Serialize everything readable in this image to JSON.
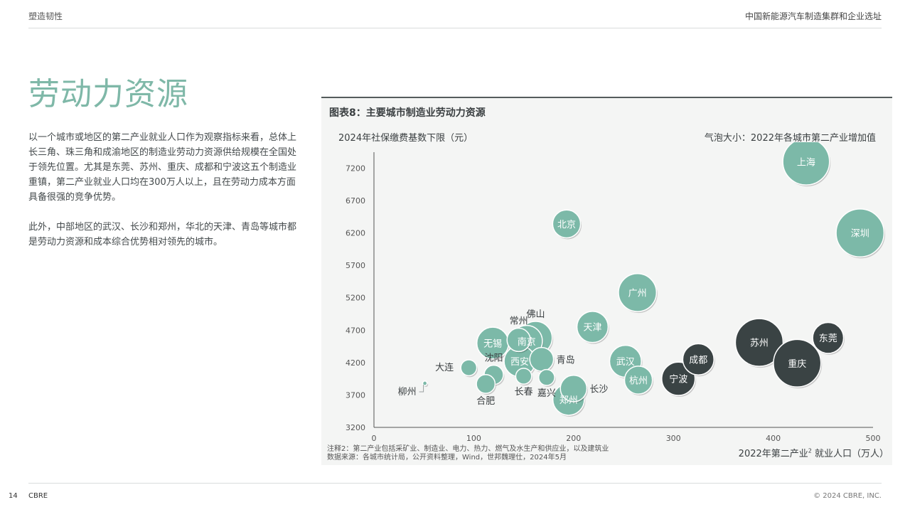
{
  "header": {
    "left": "塑造韧性",
    "right": "中国新能源汽车制造集群和企业选址"
  },
  "title": "劳动力资源",
  "paragraphs": [
    "以一个城市或地区的第二产业就业人口作为观察指标来看，总体上长三角、珠三角和成渝地区的制造业劳动力资源供给规模在全国处于领先位置。尤其是东莞、苏州、重庆、成都和宁波这五个制造业重镇，第二产业就业人口均在300万人以上，且在劳动力成本方面具备很强的竞争优势。",
    "此外，中部地区的武汉、长沙和郑州，华北的天津、青岛等城市都是劳动力资源和成本综合优势相对领先的城市。"
  ],
  "figure": {
    "title": "图表8：主要城市制造业劳动力资源",
    "note1": "注释2：第二产业包括采矿业、制造业、电力、热力、燃气及水生产和供应业，以及建筑业",
    "note2": "数据来源：各城市统计局，公开资料整理，Wind，世邦魏理仕，2024年5月",
    "bubble_note": "气泡大小：2022年各城市第二产业增加值",
    "x_title_a": "2022年第二产业",
    "x_title_sup": "2",
    "x_title_b": " 就业人口（万人）"
  },
  "chart_data": {
    "type": "scatter",
    "title": "图表8：主要城市制造业劳动力资源",
    "xlabel": "2022年第二产业就业人口（万人）",
    "ylabel": "2024年社保缴费基数下限（元）",
    "xlim": [
      0,
      500
    ],
    "ylim": [
      3200,
      7600
    ],
    "x_ticks": [
      0,
      100,
      200,
      300,
      400,
      500
    ],
    "y_ticks": [
      3200,
      3700,
      4200,
      4700,
      5200,
      5700,
      6200,
      6700,
      7200
    ],
    "grid": false,
    "size_legend": "气泡大小：2022年各城市第二产业增加值",
    "colors": {
      "teal": "#7cb9a8",
      "dark": "#3a4344",
      "axis": "#555555"
    },
    "points": [
      {
        "city": "上海",
        "x": 433,
        "y": 7300,
        "size": 11200,
        "group": "teal",
        "label_pos": "inside"
      },
      {
        "city": "深圳",
        "x": 487,
        "y": 6200,
        "size": 11800,
        "group": "teal",
        "label_pos": "inside"
      },
      {
        "city": "北京",
        "x": 193,
        "y": 6340,
        "size": 4000,
        "group": "teal",
        "label_pos": "inside"
      },
      {
        "city": "广州",
        "x": 264,
        "y": 5280,
        "size": 7400,
        "group": "teal",
        "label_pos": "inside"
      },
      {
        "city": "天津",
        "x": 219,
        "y": 4750,
        "size": 5000,
        "group": "teal",
        "label_pos": "inside"
      },
      {
        "city": "苏州",
        "x": 386,
        "y": 4510,
        "size": 11700,
        "group": "dark",
        "label_pos": "inside"
      },
      {
        "city": "东莞",
        "x": 455,
        "y": 4580,
        "size": 4900,
        "group": "dark",
        "label_pos": "inside"
      },
      {
        "city": "重庆",
        "x": 424,
        "y": 4190,
        "size": 11600,
        "group": "dark",
        "label_pos": "inside"
      },
      {
        "city": "成都",
        "x": 325,
        "y": 4250,
        "size": 5000,
        "group": "dark",
        "label_pos": "inside"
      },
      {
        "city": "宁波",
        "x": 305,
        "y": 3950,
        "size": 5700,
        "group": "dark",
        "label_pos": "inside"
      },
      {
        "city": "武汉",
        "x": 252,
        "y": 4220,
        "size": 5200,
        "group": "teal",
        "label_pos": "inside"
      },
      {
        "city": "杭州",
        "x": 265,
        "y": 3930,
        "size": 4000,
        "group": "teal",
        "label_pos": "inside"
      },
      {
        "city": "佛山",
        "x": 162,
        "y": 4580,
        "size": 5600,
        "group": "teal",
        "label_pos": "above"
      },
      {
        "city": "南京",
        "x": 153,
        "y": 4530,
        "size": 5100,
        "group": "teal",
        "label_pos": "inside"
      },
      {
        "city": "无锡",
        "x": 119,
        "y": 4500,
        "size": 5200,
        "group": "teal",
        "label_pos": "inside"
      },
      {
        "city": "常州",
        "x": 145,
        "y": 4550,
        "size": 2800,
        "group": "teal",
        "label_pos": "above"
      },
      {
        "city": "西安",
        "x": 146,
        "y": 4220,
        "size": 5000,
        "group": "teal",
        "label_pos": "inside"
      },
      {
        "city": "青岛",
        "x": 168,
        "y": 4250,
        "size": 2900,
        "group": "teal",
        "label_pos": "right"
      },
      {
        "city": "长沙",
        "x": 200,
        "y": 3800,
        "size": 3600,
        "group": "teal",
        "label_pos": "right"
      },
      {
        "city": "郑州",
        "x": 195,
        "y": 3630,
        "size": 5100,
        "group": "teal",
        "label_pos": "inside"
      },
      {
        "city": "大连",
        "x": 95,
        "y": 4120,
        "size": 1300,
        "group": "teal",
        "label_pos": "left"
      },
      {
        "city": "沈阳",
        "x": 120,
        "y": 4010,
        "size": 1900,
        "group": "teal",
        "label_pos": "above"
      },
      {
        "city": "合肥",
        "x": 112,
        "y": 3870,
        "size": 1800,
        "group": "teal",
        "label_pos": "below"
      },
      {
        "city": "长春",
        "x": 150,
        "y": 3990,
        "size": 1300,
        "group": "teal",
        "label_pos": "below"
      },
      {
        "city": "嘉兴",
        "x": 173,
        "y": 3970,
        "size": 1300,
        "group": "teal",
        "label_pos": "below"
      },
      {
        "city": "柳州",
        "x": 51,
        "y": 3880,
        "size": 100,
        "group": "teal",
        "label_pos": "left"
      }
    ]
  },
  "footer": {
    "page": "14",
    "brand": "CBRE",
    "copyright": "© 2024 CBRE, INC."
  }
}
